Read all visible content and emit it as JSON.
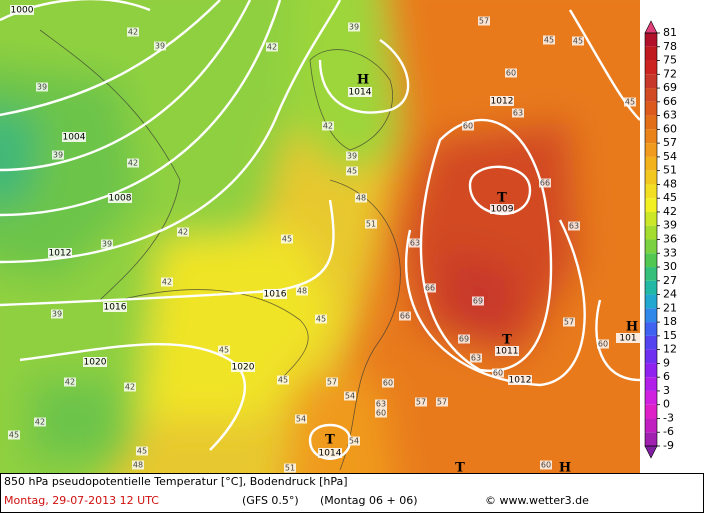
{
  "map": {
    "colorbar": {
      "ticks": [
        81,
        78,
        75,
        72,
        69,
        66,
        63,
        60,
        57,
        54,
        51,
        48,
        45,
        42,
        39,
        36,
        33,
        30,
        27,
        24,
        21,
        18,
        15,
        12,
        9,
        6,
        3,
        0,
        -3,
        -6,
        -9
      ],
      "colors": [
        "#b0102a",
        "#c01a1e",
        "#cc2420",
        "#c8382a",
        "#d24a22",
        "#dc5a1c",
        "#e26e18",
        "#ea841a",
        "#f09a1e",
        "#f2b21c",
        "#f2c820",
        "#f2de22",
        "#f2f022",
        "#cce628",
        "#a4dc30",
        "#7ad242",
        "#52c852",
        "#34c07a",
        "#22b8a6",
        "#22a8d0",
        "#3088e8",
        "#4062f0",
        "#5444f0",
        "#7030f0",
        "#9022f0",
        "#b020e8",
        "#d020e0",
        "#de20c8",
        "#c020c0",
        "#a020b0"
      ],
      "top_color": "#e0407a",
      "bottom_color": "#8020a0"
    },
    "isobar_labels": [
      "1000",
      "1004",
      "1008",
      "1012",
      "1016",
      "1020",
      "1016",
      "1020",
      "1014",
      "1012",
      "1009",
      "1011",
      "1012",
      "1014",
      "101"
    ],
    "pressure_centers": [
      "H",
      "T",
      "T",
      "T",
      "H",
      "T",
      "H"
    ],
    "temperature_labels": [
      "42",
      "39",
      "39",
      "39",
      "42",
      "42",
      "39",
      "42",
      "39",
      "42",
      "42",
      "42",
      "45",
      "45",
      "45",
      "45",
      "48",
      "45",
      "45",
      "48",
      "51",
      "45",
      "42",
      "39",
      "39",
      "42",
      "57",
      "60",
      "63",
      "60",
      "66",
      "63",
      "63",
      "66",
      "69",
      "69",
      "63",
      "60",
      "66",
      "57",
      "54",
      "60",
      "63",
      "60",
      "57",
      "57",
      "54",
      "54",
      "51",
      "60",
      "57",
      "60",
      "45",
      "45",
      "45",
      "48"
    ],
    "footer": {
      "line1": "850 hPa pseudopotentielle Temperatur [°C], Bodendruck [hPa]",
      "date": "Montag, 29-07-2013  12 UTC",
      "model": "(GFS 0.5°)",
      "run": "(Montag 06 + 06)",
      "source": "© www.wetter3.de"
    }
  }
}
